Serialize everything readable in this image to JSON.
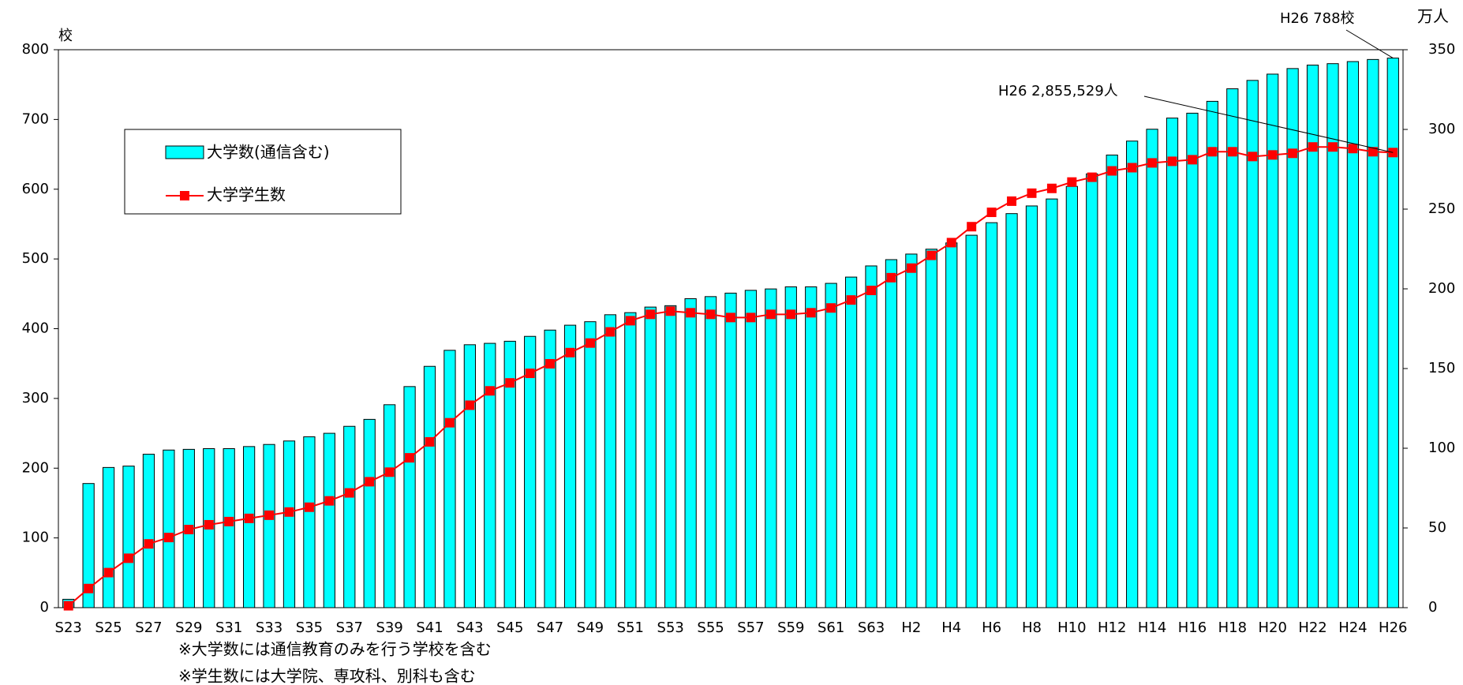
{
  "chart_data": {
    "type": "bar",
    "y_label": "校",
    "y2_label": "万人",
    "categories": [
      "S23",
      null,
      "S25",
      null,
      "S27",
      null,
      "S29",
      null,
      "S31",
      null,
      "S33",
      null,
      "S35",
      null,
      "S37",
      null,
      "S39",
      null,
      "S41",
      null,
      "S43",
      null,
      "S45",
      null,
      "S47",
      null,
      "S49",
      null,
      "S51",
      null,
      "S53",
      null,
      "S55",
      null,
      "S57",
      null,
      "S59",
      null,
      "S61",
      null,
      "S63",
      null,
      "H2",
      null,
      "H4",
      null,
      "H6",
      null,
      "H8",
      null,
      "H10",
      null,
      "H12",
      null,
      "H14",
      null,
      "H16",
      null,
      "H18",
      null,
      "H20",
      null,
      "H22",
      null,
      "H24",
      null,
      "H26"
    ],
    "series": [
      {
        "name": "大学数(通信含む)",
        "type": "bar",
        "axis": "y",
        "color": "#00ffff",
        "values": [
          12,
          178,
          201,
          203,
          220,
          226,
          227,
          228,
          228,
          231,
          234,
          239,
          245,
          250,
          260,
          270,
          291,
          317,
          346,
          369,
          377,
          379,
          382,
          389,
          398,
          405,
          410,
          420,
          423,
          431,
          433,
          443,
          446,
          451,
          455,
          457,
          460,
          460,
          465,
          474,
          490,
          499,
          507,
          514,
          523,
          534,
          552,
          565,
          576,
          586,
          604,
          622,
          649,
          669,
          686,
          702,
          709,
          726,
          744,
          756,
          765,
          773,
          778,
          780,
          783,
          786,
          788
        ]
      },
      {
        "name": "大学学生数",
        "type": "line",
        "axis": "y2",
        "color": "#ff0000",
        "values": [
          1.2,
          12,
          22,
          31,
          40,
          44,
          49,
          52,
          54,
          56,
          58,
          60,
          63,
          67,
          72,
          79,
          85,
          94,
          104,
          116,
          127,
          136,
          141,
          147,
          153,
          160,
          166,
          173,
          180,
          184,
          186,
          185,
          184,
          182,
          182,
          184,
          184,
          185,
          188,
          193,
          199,
          207,
          213,
          221,
          229,
          239,
          248,
          255,
          260,
          263,
          267,
          270,
          274,
          276,
          279,
          280,
          281,
          286,
          286,
          283,
          284,
          285,
          289,
          289,
          288,
          286,
          285.5
        ]
      }
    ],
    "ylim": [
      0,
      800
    ],
    "yticks": [
      0,
      100,
      200,
      300,
      400,
      500,
      600,
      700,
      800
    ],
    "y2lim": [
      0,
      350
    ],
    "y2ticks": [
      0,
      50,
      100,
      150,
      200,
      250,
      300,
      350
    ],
    "annotations": [
      "H26  788校",
      "H26  2,855,529人"
    ],
    "notes": [
      "※大学数には通信教育のみを行う学校を含む",
      "※学生数には大学院、専攻科、別科も含む"
    ]
  }
}
